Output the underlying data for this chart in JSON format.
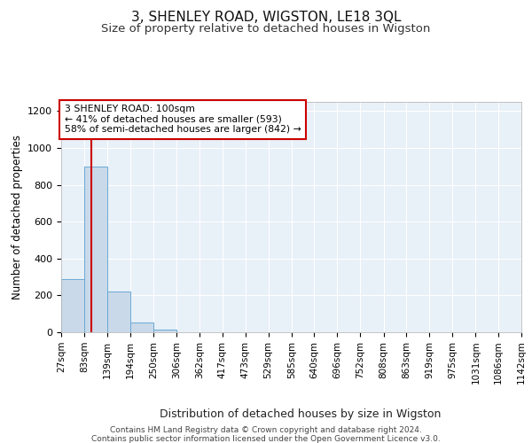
{
  "title": "3, SHENLEY ROAD, WIGSTON, LE18 3QL",
  "subtitle": "Size of property relative to detached houses in Wigston",
  "xlabel": "Distribution of detached houses by size in Wigston",
  "ylabel": "Number of detached properties",
  "bin_edges": [
    27,
    83,
    139,
    194,
    250,
    306,
    362,
    417,
    473,
    529,
    585,
    640,
    696,
    752,
    808,
    863,
    919,
    975,
    1031,
    1086,
    1142
  ],
  "bar_heights": [
    290,
    900,
    220,
    55,
    15,
    0,
    0,
    0,
    0,
    0,
    0,
    0,
    0,
    0,
    0,
    0,
    0,
    0,
    0,
    0
  ],
  "bar_color": "#c9d9ea",
  "bar_edge_color": "#6aaad4",
  "red_line_x": 100,
  "red_line_color": "#cc0000",
  "annotation_text": "3 SHENLEY ROAD: 100sqm\n← 41% of detached houses are smaller (593)\n58% of semi-detached houses are larger (842) →",
  "annotation_box_color": "#ffffff",
  "annotation_box_edge": "#cc0000",
  "ylim": [
    0,
    1250
  ],
  "yticks": [
    0,
    200,
    400,
    600,
    800,
    1000,
    1200
  ],
  "bg_color": "#ffffff",
  "plot_bg_color": "#e8f0f8",
  "footer_line1": "Contains HM Land Registry data © Crown copyright and database right 2024.",
  "footer_line2": "Contains public sector information licensed under the Open Government Licence v3.0.",
  "title_fontsize": 11,
  "subtitle_fontsize": 9.5,
  "grid_color": "#ffffff",
  "tick_label_fontsize": 7.5,
  "ylabel_fontsize": 8.5,
  "xlabel_fontsize": 9
}
